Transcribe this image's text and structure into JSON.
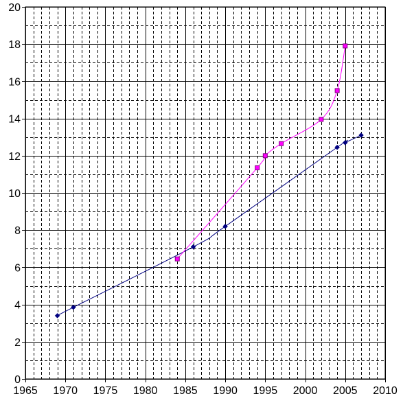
{
  "chart_data": {
    "type": "line",
    "title": "",
    "xlabel": "",
    "ylabel": "",
    "xlim": [
      1965,
      2010
    ],
    "ylim": [
      0,
      20
    ],
    "x_ticks": [
      1965,
      1970,
      1975,
      1980,
      1985,
      1990,
      1995,
      2000,
      2005,
      2010
    ],
    "y_ticks": [
      0,
      2,
      4,
      6,
      8,
      10,
      12,
      14,
      16,
      18,
      20
    ],
    "grid": {
      "major": true,
      "minor": true,
      "minor_style": "dashed",
      "x_minor_step": 1,
      "y_minor_step": 1
    },
    "series": [
      {
        "color": "#000080",
        "marker": "diamond",
        "points": [
          [
            1969,
            3.4
          ],
          [
            1971,
            3.85
          ],
          [
            1986,
            7.1
          ],
          [
            1990,
            8.2
          ],
          [
            2004,
            12.45
          ],
          [
            2005,
            12.7
          ],
          [
            2007,
            13.1
          ]
        ]
      },
      {
        "color": "#ff00ff",
        "marker": "square",
        "marker_fill": "#ff00ff",
        "marker_stroke": "#800080",
        "points": [
          [
            1984,
            6.45
          ],
          [
            1994,
            11.35
          ],
          [
            1995,
            12.0
          ],
          [
            1997,
            12.65
          ],
          [
            2002,
            13.95
          ],
          [
            2004,
            15.5
          ],
          [
            2005,
            17.9
          ]
        ]
      }
    ]
  }
}
